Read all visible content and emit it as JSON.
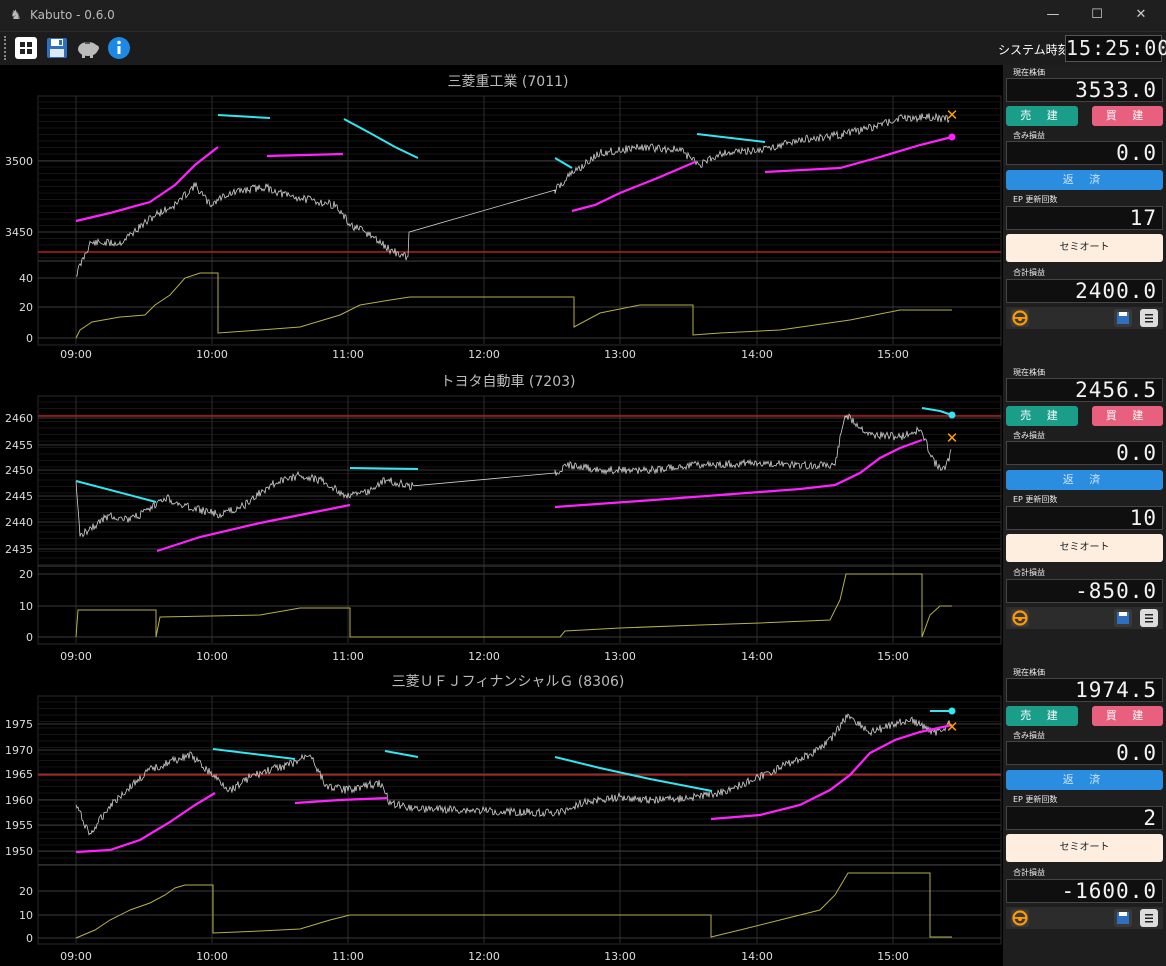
{
  "app": {
    "title": "Kabuto - 0.6.0"
  },
  "titlebar": {
    "minimize": "—",
    "maximize": "☐",
    "close": "✕"
  },
  "toolbar": {
    "system_time_label": "システム時刻",
    "system_time": "15:25:00"
  },
  "x_ticks": [
    "09:00",
    "10:00",
    "11:00",
    "12:00",
    "13:00",
    "14:00",
    "15:00"
  ],
  "panels": [
    {
      "title": "三菱重工業 (7011)",
      "price_ticks": [
        "3500",
        "3450"
      ],
      "volume_ticks": [
        "40",
        "20",
        "0"
      ],
      "side": {
        "price_label": "現在株価",
        "price": "3533.0",
        "sell": "売 建",
        "buy": "買 建",
        "unrealized_label": "含み損益",
        "unrealized": "0.0",
        "repay": "返 済",
        "ep_label": "EP 更新回数",
        "ep_count": "17",
        "semi": "セミオート",
        "total_label": "合計損益",
        "total": "2400.0"
      }
    },
    {
      "title": "トヨタ自動車 (7203)",
      "price_ticks": [
        "2460",
        "2455",
        "2450",
        "2445",
        "2440",
        "2435"
      ],
      "volume_ticks": [
        "20",
        "10",
        "0"
      ],
      "side": {
        "price_label": "現在株価",
        "price": "2456.5",
        "sell": "売 建",
        "buy": "買 建",
        "unrealized_label": "含み損益",
        "unrealized": "0.0",
        "repay": "返 済",
        "ep_label": "EP 更新回数",
        "ep_count": "10",
        "semi": "セミオート",
        "total_label": "合計損益",
        "total": "-850.0"
      }
    },
    {
      "title": "三菱ＵＦＪフィナンシャルＧ (8306)",
      "price_ticks": [
        "1975",
        "1970",
        "1965",
        "1960",
        "1955",
        "1950"
      ],
      "volume_ticks": [
        "20",
        "10",
        "0"
      ],
      "side": {
        "price_label": "現在株価",
        "price": "1974.5",
        "sell": "売 建",
        "buy": "買 建",
        "unrealized_label": "含み損益",
        "unrealized": "0.0",
        "repay": "返 済",
        "ep_label": "EP 更新回数",
        "ep_count": "2",
        "semi": "セミオート",
        "total_label": "合計損益",
        "total": "-1600.0"
      }
    }
  ],
  "colors": {
    "price": "#d0d0d0",
    "magenta": "#ff22ff",
    "cyan": "#33e6f2",
    "volume": "#b8b04a",
    "red": "#d02020",
    "cross": "#ffa000"
  },
  "icons": [
    "grid-icon",
    "save-icon",
    "piggy-icon",
    "info-icon",
    "steering-wheel-icon",
    "list-icon"
  ]
}
